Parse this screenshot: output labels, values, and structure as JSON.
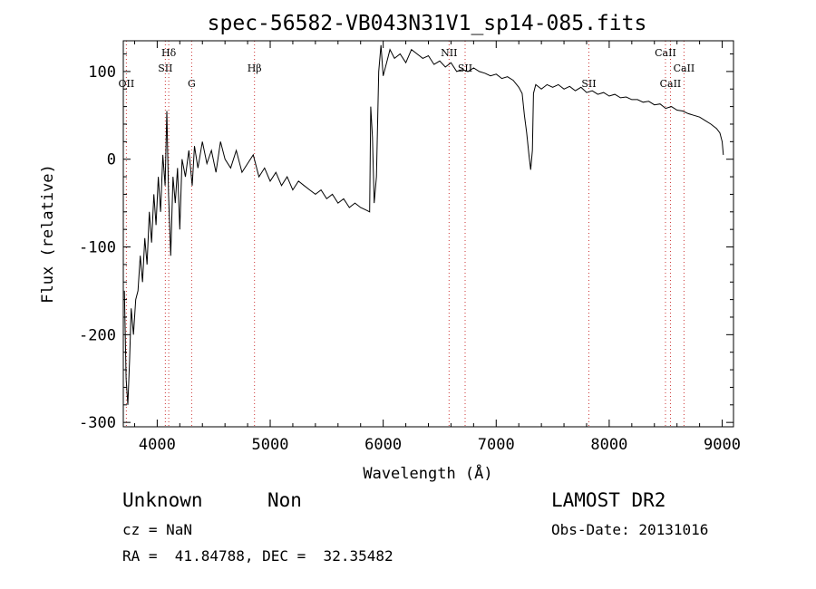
{
  "chart_data": {
    "type": "line",
    "title": "spec-56582-VB043N31V1_sp14-085.fits",
    "xlabel": "Wavelength (Å)",
    "ylabel": "Flux (relative)",
    "xlim": [
      3700,
      9100
    ],
    "ylim": [
      -305,
      135
    ],
    "x_ticks": [
      "4000",
      "5000",
      "6000",
      "7000",
      "8000",
      "9000"
    ],
    "y_ticks": [
      "-300",
      "-200",
      "-100",
      "0",
      "100"
    ],
    "grid": false,
    "legend": "none",
    "series_color": "#000000",
    "line_marker_color": "#cc3333",
    "spectrum": [
      [
        3710,
        -150
      ],
      [
        3725,
        -250
      ],
      [
        3740,
        -280
      ],
      [
        3755,
        -230
      ],
      [
        3770,
        -170
      ],
      [
        3790,
        -200
      ],
      [
        3810,
        -160
      ],
      [
        3830,
        -150
      ],
      [
        3850,
        -110
      ],
      [
        3870,
        -140
      ],
      [
        3890,
        -90
      ],
      [
        3910,
        -120
      ],
      [
        3930,
        -60
      ],
      [
        3950,
        -95
      ],
      [
        3970,
        -40
      ],
      [
        3990,
        -75
      ],
      [
        4010,
        -20
      ],
      [
        4030,
        -60
      ],
      [
        4050,
        5
      ],
      [
        4070,
        -30
      ],
      [
        4085,
        55
      ],
      [
        4100,
        -40
      ],
      [
        4120,
        -110
      ],
      [
        4140,
        -20
      ],
      [
        4160,
        -50
      ],
      [
        4180,
        -10
      ],
      [
        4200,
        -80
      ],
      [
        4220,
        0
      ],
      [
        4250,
        -20
      ],
      [
        4280,
        10
      ],
      [
        4310,
        -30
      ],
      [
        4330,
        15
      ],
      [
        4360,
        -10
      ],
      [
        4400,
        20
      ],
      [
        4440,
        -5
      ],
      [
        4480,
        10
      ],
      [
        4520,
        -15
      ],
      [
        4560,
        20
      ],
      [
        4600,
        0
      ],
      [
        4650,
        -10
      ],
      [
        4700,
        10
      ],
      [
        4750,
        -15
      ],
      [
        4800,
        -5
      ],
      [
        4850,
        5
      ],
      [
        4900,
        -20
      ],
      [
        4950,
        -10
      ],
      [
        5000,
        -25
      ],
      [
        5050,
        -15
      ],
      [
        5100,
        -30
      ],
      [
        5150,
        -20
      ],
      [
        5200,
        -35
      ],
      [
        5250,
        -25
      ],
      [
        5300,
        -30
      ],
      [
        5350,
        -35
      ],
      [
        5400,
        -40
      ],
      [
        5450,
        -35
      ],
      [
        5500,
        -45
      ],
      [
        5550,
        -40
      ],
      [
        5600,
        -50
      ],
      [
        5650,
        -45
      ],
      [
        5700,
        -55
      ],
      [
        5750,
        -50
      ],
      [
        5800,
        -55
      ],
      [
        5850,
        -58
      ],
      [
        5880,
        -60
      ],
      [
        5890,
        60
      ],
      [
        5905,
        25
      ],
      [
        5920,
        -50
      ],
      [
        5940,
        -20
      ],
      [
        5960,
        100
      ],
      [
        5980,
        130
      ],
      [
        6000,
        95
      ],
      [
        6030,
        110
      ],
      [
        6060,
        125
      ],
      [
        6100,
        115
      ],
      [
        6150,
        120
      ],
      [
        6200,
        110
      ],
      [
        6250,
        125
      ],
      [
        6300,
        120
      ],
      [
        6350,
        115
      ],
      [
        6400,
        118
      ],
      [
        6450,
        108
      ],
      [
        6500,
        112
      ],
      [
        6550,
        105
      ],
      [
        6600,
        110
      ],
      [
        6650,
        100
      ],
      [
        6700,
        102
      ],
      [
        6750,
        100
      ],
      [
        6800,
        104
      ],
      [
        6850,
        100
      ],
      [
        6900,
        98
      ],
      [
        6950,
        95
      ],
      [
        7000,
        97
      ],
      [
        7050,
        92
      ],
      [
        7100,
        94
      ],
      [
        7150,
        90
      ],
      [
        7200,
        82
      ],
      [
        7230,
        75
      ],
      [
        7250,
        50
      ],
      [
        7270,
        30
      ],
      [
        7290,
        5
      ],
      [
        7305,
        -12
      ],
      [
        7320,
        10
      ],
      [
        7330,
        75
      ],
      [
        7350,
        85
      ],
      [
        7400,
        80
      ],
      [
        7450,
        85
      ],
      [
        7500,
        82
      ],
      [
        7550,
        85
      ],
      [
        7600,
        80
      ],
      [
        7650,
        83
      ],
      [
        7700,
        78
      ],
      [
        7750,
        82
      ],
      [
        7800,
        76
      ],
      [
        7850,
        78
      ],
      [
        7900,
        74
      ],
      [
        7950,
        76
      ],
      [
        8000,
        72
      ],
      [
        8050,
        74
      ],
      [
        8100,
        70
      ],
      [
        8150,
        71
      ],
      [
        8200,
        68
      ],
      [
        8250,
        68
      ],
      [
        8300,
        65
      ],
      [
        8350,
        66
      ],
      [
        8400,
        62
      ],
      [
        8450,
        63
      ],
      [
        8500,
        58
      ],
      [
        8550,
        60
      ],
      [
        8600,
        56
      ],
      [
        8650,
        55
      ],
      [
        8700,
        52
      ],
      [
        8750,
        50
      ],
      [
        8800,
        48
      ],
      [
        8850,
        44
      ],
      [
        8900,
        40
      ],
      [
        8950,
        35
      ],
      [
        8980,
        30
      ],
      [
        9000,
        20
      ],
      [
        9010,
        5
      ]
    ],
    "spectral_lines": [
      {
        "label": "OII",
        "x": 3727,
        "row": 3
      },
      {
        "label": "Hδ",
        "x": 4102,
        "row": 1
      },
      {
        "label": "SII",
        "x": 4072,
        "row": 2
      },
      {
        "label": "G",
        "x": 4305,
        "row": 3
      },
      {
        "label": "Hβ",
        "x": 4861,
        "row": 2
      },
      {
        "label": "NII",
        "x": 6583,
        "row": 1
      },
      {
        "label": "SII",
        "x": 6725,
        "row": 2
      },
      {
        "label": "SII",
        "x": 7820,
        "row": 3
      },
      {
        "label": "CaII",
        "x": 8498,
        "row": 1
      },
      {
        "label": "CaII",
        "x": 8542,
        "row": 3
      },
      {
        "label": "CaII",
        "x": 8662,
        "row": 2
      }
    ]
  },
  "footer": {
    "class_label": "Unknown",
    "subclass_label": "Non",
    "redshift": "cz = NaN",
    "coordinates": "RA =  41.84788, DEC =  32.35482",
    "survey": "LAMOST DR2",
    "obs_date": "Obs-Date: 20131016"
  }
}
